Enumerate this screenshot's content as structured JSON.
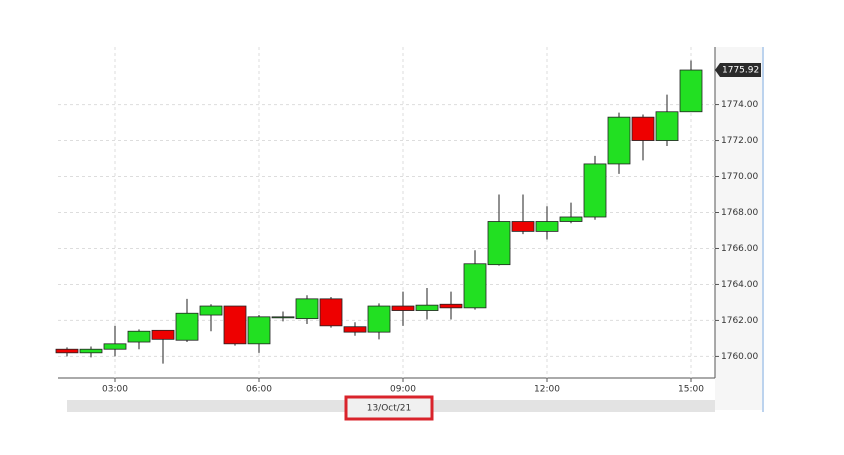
{
  "chart_data": {
    "type": "candlestick",
    "categories": [
      null,
      null,
      "03:00",
      null,
      null,
      null,
      null,
      null,
      "06:00",
      null,
      null,
      null,
      null,
      null,
      "09:00",
      null,
      null,
      null,
      null,
      null,
      "12:00",
      null,
      null,
      null,
      null,
      null,
      "15:00"
    ],
    "open": [
      1760.4,
      1760.2,
      1760.4,
      1760.8,
      1761.45,
      1760.9,
      1762.3,
      1762.8,
      1760.7,
      1762.15,
      1762.1,
      1763.2,
      1761.65,
      1761.35,
      1762.8,
      1762.55,
      1762.9,
      1762.7,
      1765.1,
      1767.5,
      1766.95,
      1767.5,
      1767.75,
      1770.7,
      1773.3,
      1772.0,
      1773.6
    ],
    "high": [
      1760.5,
      1760.55,
      1761.7,
      1761.5,
      1761.45,
      1763.2,
      1762.9,
      1762.8,
      1762.3,
      1762.5,
      1763.4,
      1763.3,
      1761.9,
      1762.95,
      1763.6,
      1763.8,
      1763.6,
      1765.9,
      1769.0,
      1769.0,
      1768.35,
      1768.55,
      1771.15,
      1773.55,
      1773.45,
      1774.55,
      1776.45
    ],
    "low": [
      1760.0,
      1759.95,
      1760.0,
      1760.4,
      1759.6,
      1760.8,
      1761.4,
      1760.6,
      1760.2,
      1761.95,
      1761.8,
      1761.6,
      1761.15,
      1760.95,
      1761.7,
      1762.05,
      1762.05,
      1762.6,
      1765.05,
      1766.8,
      1766.5,
      1767.4,
      1767.6,
      1770.15,
      1770.9,
      1771.7,
      1773.6
    ],
    "close": [
      1760.2,
      1760.4,
      1760.7,
      1761.4,
      1760.95,
      1762.4,
      1762.8,
      1760.7,
      1762.2,
      1762.2,
      1763.2,
      1761.7,
      1761.35,
      1762.8,
      1762.55,
      1762.85,
      1762.7,
      1765.15,
      1767.5,
      1766.95,
      1767.5,
      1767.75,
      1770.7,
      1773.3,
      1772.0,
      1773.6,
      1775.92
    ],
    "up_color": "#22e022",
    "down_color": "#ee0000",
    "ylim": [
      1758.8,
      1777.2
    ],
    "yticks": [
      {
        "value": 1760,
        "label": "1760.00"
      },
      {
        "value": 1762,
        "label": "1762.00"
      },
      {
        "value": 1764,
        "label": "1764.00"
      },
      {
        "value": 1766,
        "label": "1766.00"
      },
      {
        "value": 1768,
        "label": "1768.00"
      },
      {
        "value": 1770,
        "label": "1770.00"
      },
      {
        "value": 1772,
        "label": "1772.00"
      },
      {
        "value": 1774,
        "label": "1774.00"
      }
    ],
    "grid": true,
    "date_label": "13/Oct/21"
  }
}
